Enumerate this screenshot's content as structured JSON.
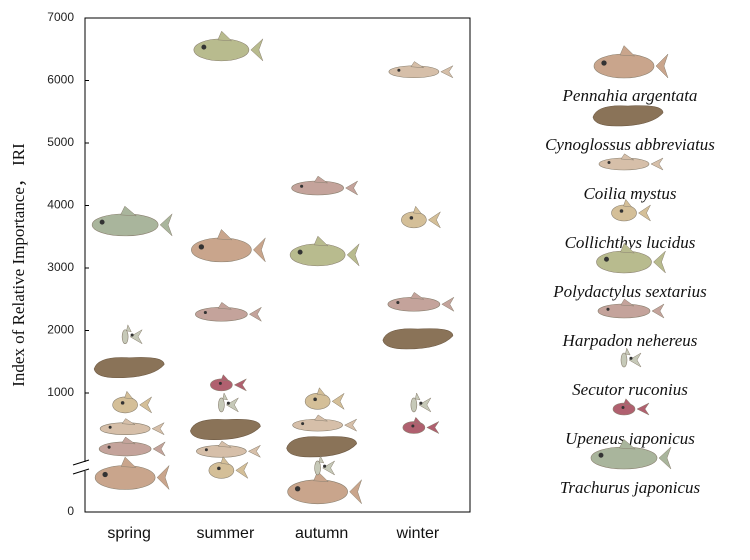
{
  "chart_data": {
    "type": "scatter",
    "y_label": "Index of Relative Importance， IRI",
    "categories": [
      "spring",
      "summer",
      "autumn",
      "winter"
    ],
    "ylim": [
      0,
      7000
    ],
    "yticks": [
      0,
      1000,
      2000,
      3000,
      4000,
      5000,
      6000,
      7000
    ],
    "axis_break": true,
    "series": [
      {
        "name": "Pennahia argentata",
        "color": "#c9a58c",
        "values": [
          290,
          3290,
          170,
          null
        ]
      },
      {
        "name": "Cynoglossus abbreviatus",
        "color": "#8a7358",
        "values": [
          1420,
          700,
          555,
          1880
        ]
      },
      {
        "name": "Coilia mystus",
        "color": "#d6bfa9",
        "values": [
          700,
          510,
          730,
          6140
        ]
      },
      {
        "name": "Collichthys lucidus",
        "color": "#d4bf98",
        "values": [
          900,
          350,
          930,
          3770
        ]
      },
      {
        "name": "Polydactylus sextarius",
        "color": "#b8bb8e",
        "values": [
          null,
          6490,
          3210,
          null
        ]
      },
      {
        "name": "Harpadon nehereus",
        "color": "#c4a39b",
        "values": [
          530,
          2260,
          4280,
          2420
        ]
      },
      {
        "name": "Secutor ruconius",
        "color": "#c6c9b8",
        "values": [
          1900,
          900,
          370,
          900
        ]
      },
      {
        "name": "Upeneus japonicus",
        "color": "#b0606f",
        "values": [
          null,
          1130,
          null,
          710
        ]
      },
      {
        "name": "Trachurus japonicus",
        "color": "#a9b59c",
        "values": [
          3690,
          null,
          null,
          null
        ]
      }
    ]
  }
}
